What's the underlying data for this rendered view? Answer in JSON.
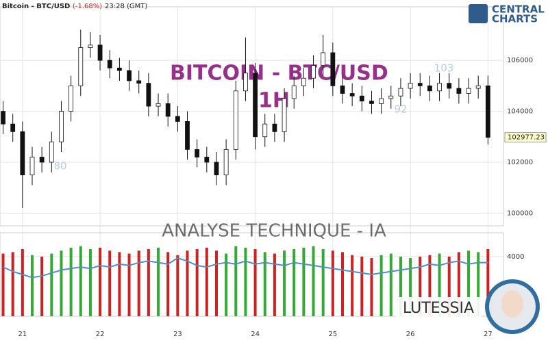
{
  "header": {
    "symbol": "Bitcoin - BTC/USD",
    "change": "(-1.68%)",
    "time": "23:28 (GMT)"
  },
  "watermark": {
    "title": "BITCOIN - BTC/USD",
    "timeframe": "1H",
    "subtitle": "ANALYSE TECHNIQUE - IA",
    "brand": "LUTESSIA",
    "logo_top": "CENTRAL",
    "logo_bottom": "CHARTS",
    "score_labels": [
      "80",
      "92",
      "103"
    ]
  },
  "chart_data": [
    {
      "type": "candlestick",
      "x": [
        20.75,
        20.875,
        21,
        21.125,
        21.25,
        21.375,
        21.5,
        21.625,
        21.75,
        21.875,
        22,
        22.125,
        22.25,
        22.375,
        22.5,
        22.625,
        22.75,
        22.875,
        23,
        23.125,
        23.25,
        23.375,
        23.5,
        23.625,
        23.75,
        23.875,
        24,
        24.125,
        24.25,
        24.375,
        24.5,
        24.625,
        24.75,
        24.875,
        25,
        25.125,
        25.25,
        25.375,
        25.5,
        25.625,
        25.75,
        25.875,
        26,
        26.125,
        26.25,
        26.375,
        26.5,
        26.625,
        26.75,
        26.875,
        27
      ],
      "open": [
        104000,
        103500,
        103200,
        101500,
        102200,
        102000,
        102800,
        104000,
        105000,
        106500,
        106600,
        106000,
        105700,
        105600,
        105200,
        105100,
        104200,
        104300,
        103800,
        103600,
        102500,
        102200,
        102000,
        101500,
        102500,
        104800,
        105500,
        103000,
        103500,
        103200,
        104500,
        105000,
        105300,
        105800,
        106300,
        105000,
        104700,
        104600,
        104400,
        104300,
        104500,
        104600,
        104900,
        105100,
        105000,
        104800,
        105100,
        104900,
        104700,
        104900,
        105000
      ],
      "high": [
        104400,
        103900,
        103600,
        102600,
        102600,
        103200,
        104400,
        105400,
        107200,
        107100,
        107000,
        106400,
        106100,
        106000,
        105600,
        105500,
        104700,
        104700,
        104200,
        104000,
        102900,
        102600,
        102400,
        102900,
        105200,
        106900,
        105900,
        103900,
        103900,
        104900,
        105400,
        105700,
        106200,
        107000,
        106700,
        105400,
        105100,
        105000,
        104800,
        104900,
        105000,
        105300,
        105500,
        105500,
        105400,
        105500,
        105500,
        105300,
        105300,
        105400,
        105400
      ],
      "low": [
        103100,
        102800,
        100200,
        101100,
        101600,
        101600,
        102400,
        103600,
        104600,
        106100,
        105600,
        105300,
        105200,
        104800,
        104700,
        103800,
        103800,
        103400,
        103200,
        102100,
        101800,
        101600,
        101100,
        101100,
        102100,
        104400,
        102500,
        102600,
        102800,
        102800,
        104100,
        104600,
        104900,
        105400,
        104600,
        104300,
        104200,
        104000,
        103900,
        103900,
        104100,
        104200,
        104500,
        104600,
        104400,
        104400,
        104500,
        104300,
        104300,
        104500,
        102700
      ],
      "close": [
        103500,
        103200,
        101500,
        102200,
        102000,
        102800,
        104000,
        105000,
        106500,
        106600,
        106000,
        105700,
        105600,
        105200,
        105100,
        104200,
        104300,
        103800,
        103600,
        102500,
        102200,
        102000,
        101500,
        102500,
        104800,
        105500,
        103000,
        103500,
        103200,
        104500,
        105000,
        105300,
        105800,
        106300,
        105000,
        104700,
        104600,
        104400,
        104300,
        104500,
        104600,
        104900,
        105100,
        105000,
        104800,
        105100,
        104900,
        104700,
        104900,
        105000,
        102977.23
      ],
      "xlim": [
        20.71,
        27.2
      ],
      "xticks": [
        21,
        22,
        23,
        24,
        25,
        26,
        27
      ],
      "ylim": [
        99500,
        108100
      ],
      "yticks": [
        100000,
        102000,
        104000,
        106000
      ],
      "grid": true,
      "up_color": "#ffffff",
      "down_color": "#111111",
      "last_label_color": "#ffffcc"
    },
    {
      "type": "volume",
      "x": [
        20.75,
        20.875,
        21,
        21.125,
        21.25,
        21.375,
        21.5,
        21.625,
        21.75,
        21.875,
        22,
        22.125,
        22.25,
        22.375,
        22.5,
        22.625,
        22.75,
        22.875,
        23,
        23.125,
        23.25,
        23.375,
        23.5,
        23.625,
        23.75,
        23.875,
        24,
        24.125,
        24.25,
        24.375,
        24.5,
        24.625,
        24.75,
        24.875,
        25,
        25.125,
        25.25,
        25.375,
        25.5,
        25.625,
        25.75,
        25.875,
        26,
        26.125,
        26.25,
        26.375,
        26.5,
        26.625,
        26.75,
        26.875,
        27
      ],
      "values": [
        4200,
        4300,
        4500,
        4100,
        4000,
        4200,
        4400,
        4600,
        4700,
        4500,
        4600,
        4400,
        4300,
        4200,
        4400,
        4500,
        4600,
        4300,
        4100,
        4400,
        4500,
        4600,
        4400,
        4200,
        4700,
        4600,
        4500,
        4300,
        4200,
        4400,
        4500,
        4600,
        4700,
        4500,
        4400,
        4300,
        4100,
        4000,
        3900,
        4100,
        4200,
        4000,
        3900,
        4000,
        4100,
        4200,
        4000,
        4300,
        4400,
        4300,
        4500
      ],
      "up_color": "#33aa33",
      "down_color": "#cc2222",
      "ma": {
        "color": "#4f8fc8",
        "values": [
          3300,
          3000,
          2800,
          2600,
          2700,
          2900,
          3100,
          3200,
          3300,
          3200,
          3400,
          3300,
          3500,
          3400,
          3600,
          3700,
          3600,
          3500,
          3900,
          3700,
          3400,
          3300,
          3500,
          3600,
          3500,
          3700,
          3500,
          3600,
          3500,
          3400,
          3600,
          3500,
          3400,
          3300,
          3200,
          3100,
          3000,
          2900,
          2800,
          2900,
          3000,
          3100,
          3200,
          3300,
          3500,
          3400,
          3600,
          3700,
          3500,
          3600,
          3600
        ]
      },
      "ylim": [
        0,
        5600
      ],
      "yticks": [
        4000
      ]
    }
  ]
}
